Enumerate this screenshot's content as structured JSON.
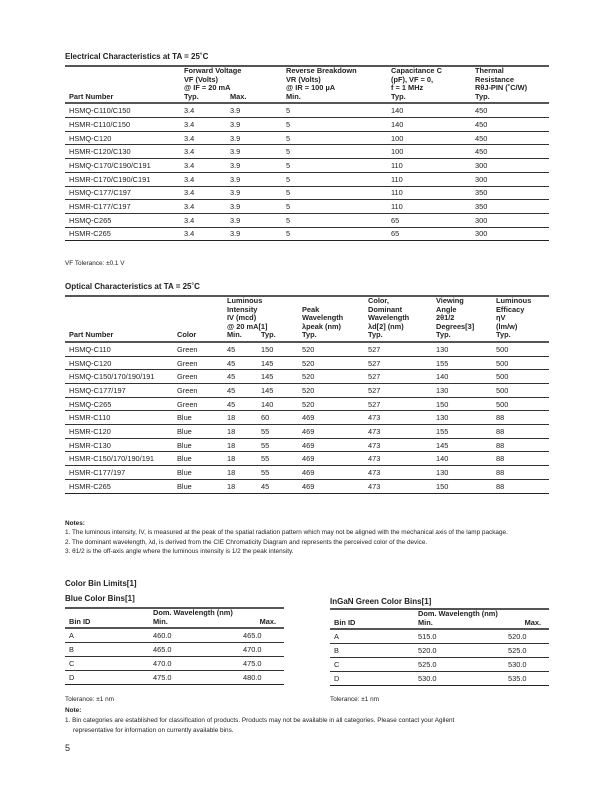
{
  "electrical": {
    "title": "Electrical Characteristics at TA = 25˚C",
    "headers": [
      {
        "top": [],
        "bottom": "Part Number"
      },
      {
        "top": [
          "Forward Voltage",
          "VF (Volts)",
          "@ IF = 20 mA"
        ],
        "bottom": "Typ."
      },
      {
        "top": [],
        "bottom": "Max."
      },
      {
        "top": [
          "Reverse Breakdown",
          "VR (Volts)",
          "@ IR = 100 µA"
        ],
        "bottom": "Min."
      },
      {
        "top": [
          "Capacitance C",
          "(pF), VF = 0,",
          "f = 1 MHz"
        ],
        "bottom": "Typ."
      },
      {
        "top": [
          "Thermal",
          "Resistance",
          "RθJ-PIN (˚C/W)"
        ],
        "bottom": "Typ."
      }
    ],
    "rows": [
      [
        "HSMQ-C110/C150",
        "3.4",
        "3.9",
        "5",
        "140",
        "450"
      ],
      [
        "HSMR-C110/C150",
        "3.4",
        "3.9",
        "5",
        "140",
        "450"
      ],
      [
        "HSMQ-C120",
        "3.4",
        "3.9",
        "5",
        "100",
        "450"
      ],
      [
        "HSMR-C120/C130",
        "3.4",
        "3.9",
        "5",
        "100",
        "450"
      ],
      [
        "HSMQ-C170/C190/C191",
        "3.4",
        "3.9",
        "5",
        "110",
        "300"
      ],
      [
        "HSMR-C170/C190/C191",
        "3.4",
        "3.9",
        "5",
        "110",
        "300"
      ],
      [
        "HSMQ-C177/C197",
        "3.4",
        "3.9",
        "5",
        "110",
        "350"
      ],
      [
        "HSMR-C177/C197",
        "3.4",
        "3.9",
        "5",
        "110",
        "350"
      ],
      [
        "HSMQ-C265",
        "3.4",
        "3.9",
        "5",
        "65",
        "300"
      ],
      [
        "HSMR-C265",
        "3.4",
        "3.9",
        "5",
        "65",
        "300"
      ]
    ],
    "tolerance": "VF Tolerance: ±0.1 V"
  },
  "optical": {
    "title": "Optical Characteristics at TA = 25˚C",
    "headers": [
      {
        "top": [],
        "bottom": "Part Number"
      },
      {
        "top": [],
        "bottom": "Color"
      },
      {
        "top": [
          "Luminous",
          "Intensity",
          "IV (mcd)",
          "@ 20 mA[1]"
        ],
        "bottom": "Min."
      },
      {
        "top": [],
        "bottom": "Typ."
      },
      {
        "top": [
          "Peak",
          "Wavelength",
          "λpeak (nm)"
        ],
        "bottom": "Typ."
      },
      {
        "top": [
          "Color,",
          "Dominant",
          "Wavelength",
          "λd[2] (nm)"
        ],
        "bottom": "Typ."
      },
      {
        "top": [
          "Viewing",
          "Angle",
          "2θ1/2",
          "Degrees[3]"
        ],
        "bottom": "Typ."
      },
      {
        "top": [
          "Luminous",
          "Efficacy",
          "ηV",
          "(lm/w)"
        ],
        "bottom": "Typ."
      }
    ],
    "rows": [
      [
        "HSMQ-C110",
        "Green",
        "45",
        "150",
        "520",
        "527",
        "130",
        "500"
      ],
      [
        "HSMQ-C120",
        "Green",
        "45",
        "145",
        "520",
        "527",
        "155",
        "500"
      ],
      [
        "HSMQ-C150/170/190/191",
        "Green",
        "45",
        "145",
        "520",
        "527",
        "140",
        "500"
      ],
      [
        "HSMQ-C177/197",
        "Green",
        "45",
        "145",
        "520",
        "527",
        "130",
        "500"
      ],
      [
        "HSMQ-C265",
        "Green",
        "45",
        "140",
        "520",
        "527",
        "150",
        "500"
      ],
      [
        "HSMR-C110",
        "Blue",
        "18",
        "60",
        "469",
        "473",
        "130",
        "88"
      ],
      [
        "HSMR-C120",
        "Blue",
        "18",
        "55",
        "469",
        "473",
        "155",
        "88"
      ],
      [
        "HSMR-C130",
        "Blue",
        "18",
        "55",
        "469",
        "473",
        "145",
        "88"
      ],
      [
        "HSMR-C150/170/190/191",
        "Blue",
        "18",
        "55",
        "469",
        "473",
        "140",
        "88"
      ],
      [
        "HSMR-C177/197",
        "Blue",
        "18",
        "55",
        "469",
        "473",
        "130",
        "88"
      ],
      [
        "HSMR-C265",
        "Blue",
        "18",
        "45",
        "469",
        "473",
        "150",
        "88"
      ]
    ],
    "notes_title": "Notes:",
    "notes": [
      "1.  The luminous intensity, IV, is measured at the peak of the spatial radiation pattern which may not be aligned with the mechanical axis of the lamp package.",
      "2.  The dominant wavelength,  λd, is derived from the CIE Chromaticity Diagram and represents the perceived color of the device.",
      "3.  θ1/2 is the off-axis angle where the luminous intensity is 1/2 the peak intensity."
    ]
  },
  "bins": {
    "title": "Color Bin Limits[1]",
    "blue": {
      "title": "Blue Color Bins[1]",
      "group_header": "Dom. Wavelength (nm)",
      "headers": [
        "Bin ID",
        "Min.",
        "Max."
      ],
      "rows": [
        [
          "A",
          "460.0",
          "465.0"
        ],
        [
          "B",
          "465.0",
          "470.0"
        ],
        [
          "C",
          "470.0",
          "475.0"
        ],
        [
          "D",
          "475.0",
          "480.0"
        ]
      ],
      "tolerance": "Tolerance: ±1 nm"
    },
    "green": {
      "title": "InGaN Green Color Bins[1]",
      "group_header": "Dom. Wavelength (nm)",
      "headers": [
        "Bin ID",
        "Min.",
        "Max."
      ],
      "rows": [
        [
          "A",
          "515.0",
          "520.0"
        ],
        [
          "B",
          "520.0",
          "525.0"
        ],
        [
          "C",
          "525.0",
          "530.0"
        ],
        [
          "D",
          "530.0",
          "535.0"
        ]
      ],
      "tolerance": "Tolerance: ±1 nm"
    },
    "note_title": "Note:",
    "notes": [
      "1.  Bin categories are established for classification of products. Products may not be available in all categories. Please contact your Agilent",
      "representative for information on currently available bins."
    ]
  },
  "page_number": "5"
}
